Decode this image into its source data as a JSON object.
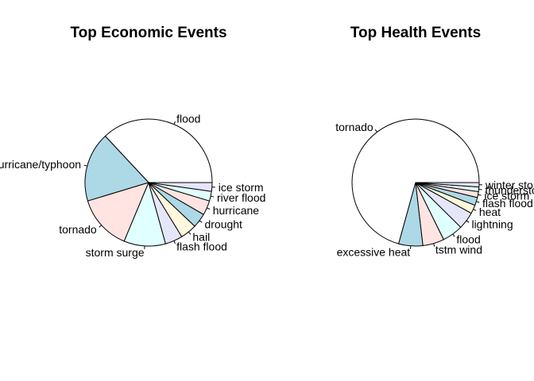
{
  "chart_data": [
    {
      "type": "pie",
      "title": "Top Economic Events",
      "categories": [
        "flood",
        "hurricane/typhoon",
        "tornado",
        "storm surge",
        "flash flood",
        "hail",
        "drought",
        "hurricane",
        "river flood",
        "ice storm"
      ],
      "values": [
        150,
        72,
        57,
        43,
        18,
        17,
        15,
        15,
        10,
        9
      ],
      "colors": [
        "#ffffff",
        "#add8e6",
        "#ffe4e1",
        "#e0ffff",
        "#e6e6fa",
        "#fff8dc",
        "#add8e6",
        "#ffe4e1",
        "#e0ffff",
        "#e6e6fa"
      ]
    },
    {
      "type": "pie",
      "title": "Top Health Events",
      "categories": [
        "tornado",
        "excessive heat",
        "tstm wind",
        "flood",
        "lightning",
        "heat",
        "flash flood",
        "ice storm",
        "thunderstorm wind",
        "winter storm"
      ],
      "values": [
        96980,
        8428,
        7461,
        7259,
        6046,
        3037,
        2755,
        2064,
        1621,
        1527
      ],
      "colors": [
        "#ffffff",
        "#add8e6",
        "#ffe4e1",
        "#e0ffff",
        "#e6e6fa",
        "#fff8dc",
        "#add8e6",
        "#ffe4e1",
        "#e0ffff",
        "#e6e6fa"
      ]
    }
  ]
}
